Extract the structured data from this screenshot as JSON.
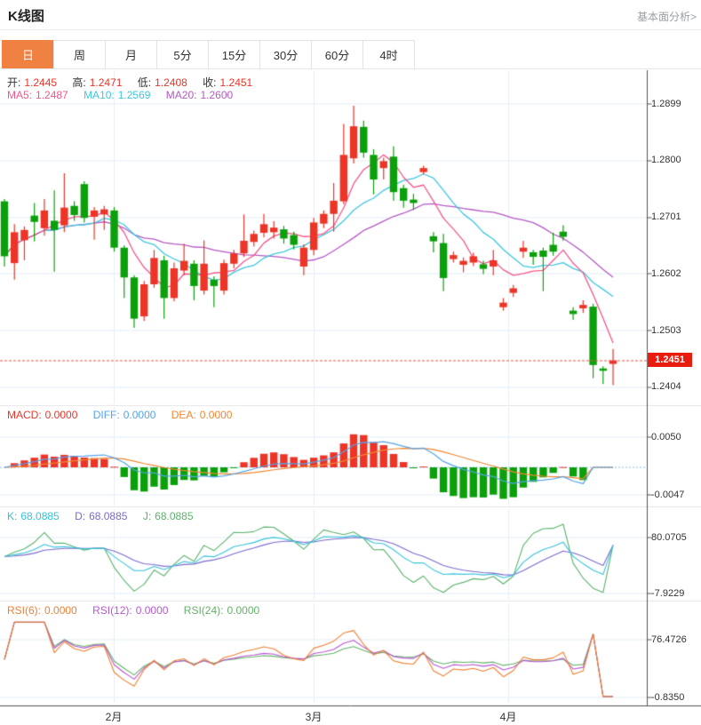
{
  "header": {
    "title": "K线图",
    "link": "基本面分析>"
  },
  "tabs": {
    "active_index": 0,
    "active_color": "#ef8143",
    "items": [
      {
        "label": "日"
      },
      {
        "label": "周"
      },
      {
        "label": "月"
      },
      {
        "label": "5分"
      },
      {
        "label": "15分"
      },
      {
        "label": "30分"
      },
      {
        "label": "60分"
      },
      {
        "label": "4时"
      }
    ]
  },
  "main_legend": {
    "ohlc": [
      {
        "label": "开:",
        "value": "1.2445"
      },
      {
        "label": "高:",
        "value": "1.2471"
      },
      {
        "label": "低:",
        "value": "1.2408"
      },
      {
        "label": "收:",
        "value": "1.2451"
      }
    ],
    "ohlc_value_color": "#ec3427",
    "ma": [
      {
        "label": "MA5:",
        "value": "1.2487",
        "color": "#f4568c"
      },
      {
        "label": "MA10:",
        "value": "1.2569",
        "color": "#3ec6e0"
      },
      {
        "label": "MA20:",
        "value": "1.2600",
        "color": "#b559c5"
      }
    ]
  },
  "panels": {
    "macd": {
      "legend": [
        {
          "label": "MACD:",
          "value": "0.0000",
          "color": "#ec3427"
        },
        {
          "label": "DIFF:",
          "value": "0.0000",
          "color": "#55a4ea"
        },
        {
          "label": "DEA:",
          "value": "0.0000",
          "color": "#f08732"
        }
      ],
      "ticks": [
        "0.0050",
        "-0.0047"
      ]
    },
    "kdj": {
      "legend": [
        {
          "label": "K:",
          "value": "68.0885",
          "color": "#36c2da"
        },
        {
          "label": "D:",
          "value": "68.0885",
          "color": "#7c6acc"
        },
        {
          "label": "J:",
          "value": "68.0885",
          "color": "#5bb26d"
        }
      ],
      "ticks": [
        "80.0705",
        "-7.9229"
      ]
    },
    "rsi": {
      "legend": [
        {
          "label": "RSI(6):",
          "value": "0.0000",
          "color": "#f08032"
        },
        {
          "label": "RSI(12):",
          "value": "0.0000",
          "color": "#b757d2"
        },
        {
          "label": "RSI(24):",
          "value": "0.0000",
          "color": "#66b26a"
        }
      ],
      "ticks": [
        "76.4726",
        "-0.8350"
      ]
    }
  },
  "y_axis": {
    "main_ticks": [
      "1.2899",
      "1.2800",
      "1.2701",
      "1.2602",
      "1.2503",
      "1.2404"
    ],
    "current_price": "1.2451",
    "current_price_color": "#e81d0f"
  },
  "x_axis": {
    "months": [
      {
        "label": "2月",
        "i": 11
      },
      {
        "label": "3月",
        "i": 31
      },
      {
        "label": "4月",
        "i": 50.5
      }
    ]
  },
  "chart_data": {
    "type": "candlestick",
    "title": "K线图 (daily K-line with MA5/MA10/MA20, MACD, KDJ, RSI panels)",
    "panels": [
      "price+MA",
      "MACD",
      "KDJ",
      "RSI"
    ],
    "price_axis_range": [
      1.2404,
      1.2899
    ],
    "macd_axis_ticks": [
      0.005,
      -0.0047
    ],
    "kdj_axis_ticks": [
      80.0705,
      -7.9229
    ],
    "rsi_axis_ticks": [
      76.4726,
      -0.835
    ],
    "last_values": {
      "open": 1.2445,
      "high": 1.2471,
      "low": 1.2408,
      "close": 1.2451,
      "ma5": 1.2487,
      "ma10": 1.2569,
      "ma20": 1.26,
      "macd": 0,
      "diff": 0,
      "dea": 0,
      "k": 68.0885,
      "d": 68.0885,
      "j": 68.0885,
      "rsi6": 0,
      "rsi12": 0,
      "rsi24": 0
    },
    "colors": {
      "up": "#ec3427",
      "down": "#0ba00b",
      "ma5": "#f4568c",
      "ma10": "#3ec6e0",
      "ma20": "#b559c5",
      "diff": "#55a4ea",
      "dea": "#f08732",
      "k": "#36c2da",
      "d": "#7c6acc",
      "j": "#5bb26d",
      "rsi6": "#f08032",
      "rsi12": "#b757d2",
      "rsi24": "#66b26a"
    },
    "candles": [
      [
        1.2729,
        1.2733,
        1.2615,
        1.2633
      ],
      [
        1.2621,
        1.2689,
        1.2592,
        1.2675
      ],
      [
        1.2661,
        1.2685,
        1.2626,
        1.2679
      ],
      [
        1.2704,
        1.2726,
        1.2659,
        1.2693
      ],
      [
        1.2682,
        1.2733,
        1.2669,
        1.2713
      ],
      [
        1.2695,
        1.2748,
        1.2606,
        1.2679
      ],
      [
        1.2687,
        1.2778,
        1.2675,
        1.2718
      ],
      [
        1.2721,
        1.2729,
        1.2695,
        1.2705
      ],
      [
        1.2759,
        1.2764,
        1.2692,
        1.27
      ],
      [
        1.2702,
        1.2719,
        1.2662,
        1.2713
      ],
      [
        1.2706,
        1.2721,
        1.2679,
        1.2715
      ],
      [
        1.2713,
        1.2719,
        1.2641,
        1.2648
      ],
      [
        1.2648,
        1.2652,
        1.256,
        1.2596
      ],
      [
        1.2596,
        1.26,
        1.2508,
        1.2524
      ],
      [
        1.2528,
        1.259,
        1.252,
        1.2584
      ],
      [
        1.2584,
        1.2644,
        1.2578,
        1.263
      ],
      [
        1.2626,
        1.2634,
        1.2524,
        1.256
      ],
      [
        1.256,
        1.2622,
        1.2554,
        1.2612
      ],
      [
        1.2608,
        1.2655,
        1.26,
        1.2625
      ],
      [
        1.262,
        1.2626,
        1.2556,
        1.2581
      ],
      [
        1.2573,
        1.2661,
        1.2566,
        1.262
      ],
      [
        1.2592,
        1.2598,
        1.2544,
        1.2581
      ],
      [
        1.2573,
        1.2627,
        1.2566,
        1.2621
      ],
      [
        1.262,
        1.2644,
        1.2612,
        1.2638
      ],
      [
        1.2638,
        1.2706,
        1.2632,
        1.266
      ],
      [
        1.2658,
        1.2678,
        1.265,
        1.2672
      ],
      [
        1.2674,
        1.2707,
        1.2666,
        1.2689
      ],
      [
        1.2675,
        1.2694,
        1.2664,
        1.2683
      ],
      [
        1.268,
        1.2686,
        1.2655,
        1.2664
      ],
      [
        1.267,
        1.2676,
        1.2645,
        1.2653
      ],
      [
        1.2615,
        1.2654,
        1.26,
        1.2648
      ],
      [
        1.2644,
        1.27,
        1.2635,
        1.2692
      ],
      [
        1.269,
        1.2713,
        1.2682,
        1.2707
      ],
      [
        1.2707,
        1.2761,
        1.2676,
        1.273
      ],
      [
        1.2729,
        1.2864,
        1.2724,
        1.281
      ],
      [
        1.2804,
        1.2896,
        1.2795,
        1.286
      ],
      [
        1.2859,
        1.287,
        1.2805,
        1.2814
      ],
      [
        1.281,
        1.282,
        1.2741,
        1.2767
      ],
      [
        1.2787,
        1.2805,
        1.2767,
        1.2799
      ],
      [
        1.2807,
        1.2825,
        1.273,
        1.2745
      ],
      [
        1.2752,
        1.2758,
        1.2718,
        1.273
      ],
      [
        1.2732,
        1.2742,
        1.2714,
        1.2726
      ],
      [
        1.278,
        1.2791,
        1.2776,
        1.2787
      ],
      [
        1.2668,
        1.2675,
        1.264,
        1.2659
      ],
      [
        1.2656,
        1.2672,
        1.2572,
        1.2595
      ],
      [
        1.2628,
        1.2641,
        1.2622,
        1.2635
      ],
      [
        1.2618,
        1.2631,
        1.2605,
        1.2625
      ],
      [
        1.2622,
        1.2639,
        1.2616,
        1.2633
      ],
      [
        1.2619,
        1.2625,
        1.2602,
        1.2611
      ],
      [
        1.2615,
        1.2644,
        1.26,
        1.2626
      ],
      [
        1.2544,
        1.256,
        1.2538,
        1.2552
      ],
      [
        1.2569,
        1.2583,
        1.2562,
        1.2577
      ],
      [
        1.2641,
        1.266,
        1.263,
        1.2648
      ],
      [
        1.264,
        1.2644,
        1.2618,
        1.2632
      ],
      [
        1.2643,
        1.2648,
        1.2572,
        1.2632
      ],
      [
        1.2653,
        1.2674,
        1.2634,
        1.2641
      ],
      [
        1.2676,
        1.2687,
        1.266,
        1.2667
      ],
      [
        1.2538,
        1.2544,
        1.2522,
        1.2532
      ],
      [
        1.2542,
        1.2556,
        1.2534,
        1.2548
      ],
      [
        1.2545,
        1.255,
        1.242,
        1.2443
      ],
      [
        1.2437,
        1.2441,
        1.241,
        1.2433
      ],
      [
        1.2445,
        1.2471,
        1.2408,
        1.2451
      ]
    ]
  }
}
